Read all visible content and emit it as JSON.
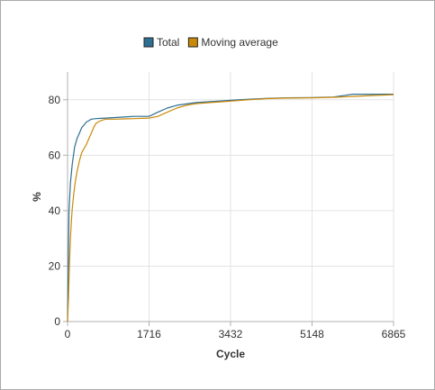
{
  "chart_data": {
    "type": "line",
    "title": "",
    "xlabel": "Cycle",
    "ylabel": "%",
    "xlim": [
      0,
      6865
    ],
    "ylim": [
      0,
      90
    ],
    "x_ticks": [
      0,
      1716,
      3432,
      5148,
      6865
    ],
    "y_ticks": [
      0,
      20,
      40,
      60,
      80
    ],
    "grid": true,
    "legend_position": "top-center",
    "series": [
      {
        "name": "Total",
        "color": "#2e6f94",
        "x": [
          0,
          30,
          60,
          100,
          150,
          200,
          250,
          300,
          350,
          400,
          450,
          500,
          600,
          700,
          800,
          1000,
          1200,
          1400,
          1716,
          1900,
          2100,
          2300,
          2500,
          2700,
          3000,
          3432,
          3800,
          4200,
          4600,
          5148,
          5600,
          5800,
          6000,
          6200,
          6500,
          6865
        ],
        "values": [
          0,
          40,
          50,
          57,
          63,
          66,
          68,
          70,
          71,
          72,
          72.5,
          73,
          73.2,
          73.3,
          73.4,
          73.6,
          73.8,
          74,
          74,
          75.5,
          77,
          78,
          78.5,
          79,
          79.3,
          79.8,
          80.2,
          80.5,
          80.7,
          80.8,
          81,
          81.5,
          82,
          82,
          82,
          82
        ]
      },
      {
        "name": "Moving average",
        "color": "#c98a0a",
        "x": [
          0,
          20,
          40,
          60,
          80,
          100,
          130,
          160,
          200,
          250,
          300,
          350,
          400,
          450,
          500,
          550,
          600,
          700,
          800,
          1000,
          1200,
          1400,
          1716,
          1900,
          2100,
          2300,
          2500,
          2700,
          3000,
          3432,
          3800,
          4200,
          4600,
          5148,
          5600,
          6000,
          6500,
          6865
        ],
        "values": [
          0,
          9,
          21,
          30,
          36,
          41,
          46,
          50,
          54,
          58,
          61,
          62.5,
          64,
          66,
          68,
          70,
          71.5,
          72.5,
          73,
          73,
          73.1,
          73.2,
          73.4,
          74,
          75.5,
          77,
          78,
          78.6,
          79,
          79.5,
          80,
          80.4,
          80.6,
          80.7,
          80.9,
          81.2,
          81.6,
          81.8
        ]
      }
    ]
  }
}
